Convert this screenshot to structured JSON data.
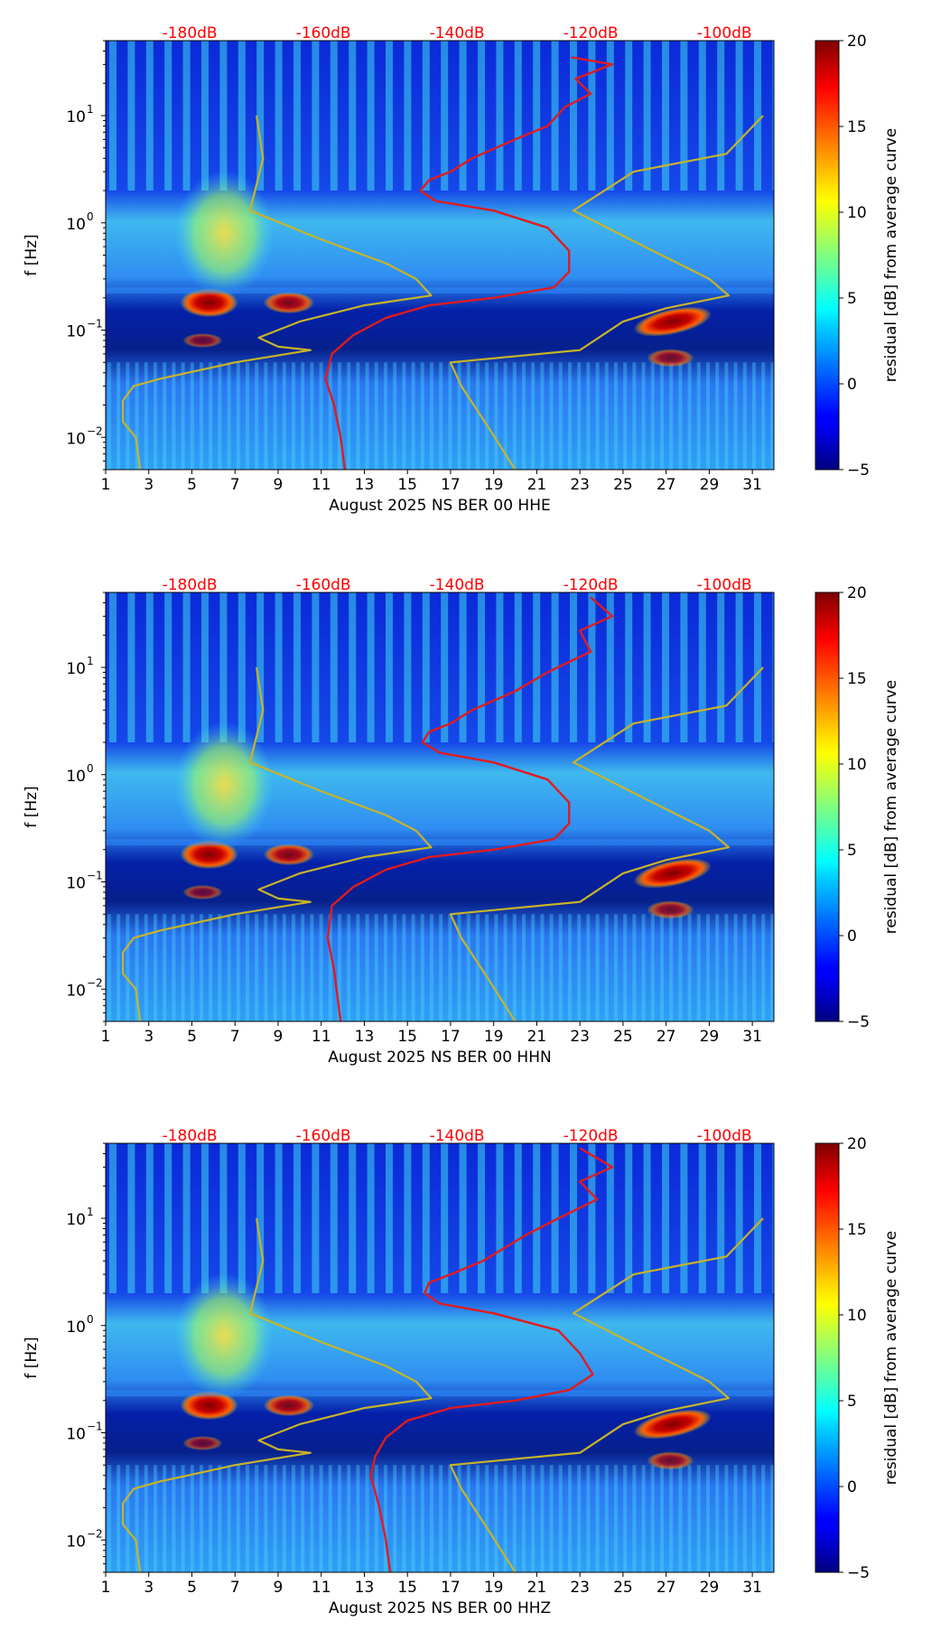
{
  "chart_data": [
    {
      "type": "heatmap",
      "xlabel": "August 2025 NS BER 00 HHE",
      "ylabel": "f [Hz]",
      "x_ticks": [
        "1",
        "3",
        "5",
        "7",
        "9",
        "11",
        "13",
        "15",
        "17",
        "19",
        "21",
        "23",
        "25",
        "27",
        "29",
        "31"
      ],
      "x_tick_values": [
        1,
        3,
        5,
        7,
        9,
        11,
        13,
        15,
        17,
        19,
        21,
        23,
        25,
        27,
        29,
        31
      ],
      "xlim": [
        1,
        32
      ],
      "y_scale": "log",
      "ylim": [
        0.005,
        50
      ],
      "y_ticks": [
        {
          "base": "10",
          "exp": "−2",
          "value": 0.01
        },
        {
          "base": "10",
          "exp": "−1",
          "value": 0.1
        },
        {
          "base": "10",
          "exp": "0",
          "value": 1
        },
        {
          "base": "10",
          "exp": "1",
          "value": 10
        }
      ],
      "top_labels": [
        "-180dB",
        "-160dB",
        "-140dB",
        "-120dB",
        "-100dB"
      ],
      "top_label_x": [
        4.9,
        11.1,
        17.3,
        23.5,
        29.7
      ],
      "colorbar": {
        "label": "residual [dB] from average curve",
        "ticks": [
          "20",
          "15",
          "10",
          "5",
          "0",
          "−5"
        ],
        "tick_values": [
          20,
          15,
          10,
          5,
          0,
          -5
        ],
        "range": [
          -5,
          20
        ]
      },
      "series": [
        {
          "color": "#e41a1c",
          "points": [
            [
              22.6,
              35
            ],
            [
              24.5,
              30
            ],
            [
              22.8,
              22
            ],
            [
              23.5,
              16
            ],
            [
              22.3,
              12
            ],
            [
              21.5,
              8
            ],
            [
              20,
              6
            ],
            [
              18,
              4
            ],
            [
              17,
              3
            ],
            [
              16,
              2.5
            ],
            [
              15.6,
              2
            ],
            [
              16.3,
              1.6
            ],
            [
              19,
              1.3
            ],
            [
              21.5,
              0.9
            ],
            [
              22.5,
              0.55
            ],
            [
              22.5,
              0.35
            ],
            [
              21.8,
              0.25
            ],
            [
              19,
              0.2
            ],
            [
              16,
              0.17
            ],
            [
              14,
              0.13
            ],
            [
              12.5,
              0.09
            ],
            [
              11.5,
              0.06
            ],
            [
              11.2,
              0.035
            ],
            [
              11.6,
              0.02
            ],
            [
              11.9,
              0.01
            ],
            [
              12.1,
              0.005
            ]
          ]
        },
        {
          "color": "#c8b428",
          "points": [
            [
              8,
              10
            ],
            [
              8.3,
              4
            ],
            [
              7.7,
              1.3
            ],
            [
              11,
              0.7
            ],
            [
              14,
              0.42
            ],
            [
              15.4,
              0.3
            ],
            [
              16.1,
              0.21
            ],
            [
              13,
              0.17
            ],
            [
              10,
              0.12
            ],
            [
              8.1,
              0.085
            ],
            [
              9,
              0.07
            ],
            [
              10.5,
              0.065
            ],
            [
              7,
              0.05
            ],
            [
              3.5,
              0.035
            ],
            [
              2.3,
              0.03
            ],
            [
              1.8,
              0.022
            ],
            [
              1.8,
              0.014
            ],
            [
              2.4,
              0.01
            ],
            [
              2.6,
              0.005
            ]
          ]
        },
        {
          "color": "#c8b428",
          "points": [
            [
              31.5,
              10
            ],
            [
              29.8,
              4.4
            ],
            [
              25.5,
              3
            ],
            [
              22.7,
              1.3
            ],
            [
              26,
              0.6
            ],
            [
              29,
              0.3
            ],
            [
              29.9,
              0.21
            ],
            [
              27,
              0.16
            ],
            [
              25,
              0.12
            ],
            [
              23,
              0.065
            ],
            [
              17,
              0.05
            ],
            [
              17.5,
              0.03
            ],
            [
              18.8,
              0.012
            ],
            [
              20,
              0.005
            ]
          ]
        }
      ]
    },
    {
      "type": "heatmap",
      "xlabel": "August 2025 NS BER 00 HHN",
      "ylabel": "f [Hz]",
      "x_ticks": [
        "1",
        "3",
        "5",
        "7",
        "9",
        "11",
        "13",
        "15",
        "17",
        "19",
        "21",
        "23",
        "25",
        "27",
        "29",
        "31"
      ],
      "x_tick_values": [
        1,
        3,
        5,
        7,
        9,
        11,
        13,
        15,
        17,
        19,
        21,
        23,
        25,
        27,
        29,
        31
      ],
      "xlim": [
        1,
        32
      ],
      "y_scale": "log",
      "ylim": [
        0.005,
        50
      ],
      "y_ticks": [
        {
          "base": "10",
          "exp": "−2",
          "value": 0.01
        },
        {
          "base": "10",
          "exp": "−1",
          "value": 0.1
        },
        {
          "base": "10",
          "exp": "0",
          "value": 1
        },
        {
          "base": "10",
          "exp": "1",
          "value": 10
        }
      ],
      "top_labels": [
        "-180dB",
        "-160dB",
        "-140dB",
        "-120dB",
        "-100dB"
      ],
      "top_label_x": [
        4.9,
        11.1,
        17.3,
        23.5,
        29.7
      ],
      "colorbar": {
        "label": "residual [dB] from average curve",
        "ticks": [
          "20",
          "15",
          "10",
          "5",
          "0",
          "−5"
        ],
        "tick_values": [
          20,
          15,
          10,
          5,
          0,
          -5
        ],
        "range": [
          -5,
          20
        ]
      },
      "series": [
        {
          "color": "#e41a1c",
          "points": [
            [
              23.5,
              45
            ],
            [
              24.5,
              30
            ],
            [
              23,
              22
            ],
            [
              23.5,
              14
            ],
            [
              21.5,
              9
            ],
            [
              20,
              6
            ],
            [
              18,
              4
            ],
            [
              17,
              3
            ],
            [
              16,
              2.5
            ],
            [
              15.7,
              2
            ],
            [
              16.5,
              1.6
            ],
            [
              19,
              1.3
            ],
            [
              21.5,
              0.9
            ],
            [
              22.5,
              0.55
            ],
            [
              22.5,
              0.35
            ],
            [
              21.8,
              0.25
            ],
            [
              19,
              0.2
            ],
            [
              16,
              0.17
            ],
            [
              14,
              0.13
            ],
            [
              12.5,
              0.09
            ],
            [
              11.5,
              0.06
            ],
            [
              11.3,
              0.03
            ],
            [
              11.6,
              0.015
            ],
            [
              11.9,
              0.005
            ]
          ]
        },
        {
          "color": "#c8b428",
          "points": [
            [
              8,
              10
            ],
            [
              8.3,
              4
            ],
            [
              7.7,
              1.3
            ],
            [
              11,
              0.7
            ],
            [
              14,
              0.42
            ],
            [
              15.4,
              0.3
            ],
            [
              16.1,
              0.21
            ],
            [
              13,
              0.17
            ],
            [
              10,
              0.12
            ],
            [
              8.1,
              0.085
            ],
            [
              9,
              0.07
            ],
            [
              10.5,
              0.065
            ],
            [
              7,
              0.05
            ],
            [
              3.5,
              0.035
            ],
            [
              2.3,
              0.03
            ],
            [
              1.8,
              0.022
            ],
            [
              1.8,
              0.014
            ],
            [
              2.4,
              0.01
            ],
            [
              2.6,
              0.005
            ]
          ]
        },
        {
          "color": "#c8b428",
          "points": [
            [
              31.5,
              10
            ],
            [
              29.8,
              4.4
            ],
            [
              25.5,
              3
            ],
            [
              22.7,
              1.3
            ],
            [
              26,
              0.6
            ],
            [
              29,
              0.3
            ],
            [
              29.9,
              0.21
            ],
            [
              27,
              0.16
            ],
            [
              25,
              0.12
            ],
            [
              23,
              0.065
            ],
            [
              17,
              0.05
            ],
            [
              17.5,
              0.03
            ],
            [
              18.8,
              0.012
            ],
            [
              20,
              0.005
            ]
          ]
        }
      ]
    },
    {
      "type": "heatmap",
      "xlabel": "August 2025 NS BER 00 HHZ",
      "ylabel": "f [Hz]",
      "x_ticks": [
        "1",
        "3",
        "5",
        "7",
        "9",
        "11",
        "13",
        "15",
        "17",
        "19",
        "21",
        "23",
        "25",
        "27",
        "29",
        "31"
      ],
      "x_tick_values": [
        1,
        3,
        5,
        7,
        9,
        11,
        13,
        15,
        17,
        19,
        21,
        23,
        25,
        27,
        29,
        31
      ],
      "xlim": [
        1,
        32
      ],
      "y_scale": "log",
      "ylim": [
        0.005,
        50
      ],
      "y_ticks": [
        {
          "base": "10",
          "exp": "−2",
          "value": 0.01
        },
        {
          "base": "10",
          "exp": "−1",
          "value": 0.1
        },
        {
          "base": "10",
          "exp": "0",
          "value": 1
        },
        {
          "base": "10",
          "exp": "1",
          "value": 10
        }
      ],
      "top_labels": [
        "-180dB",
        "-160dB",
        "-140dB",
        "-120dB",
        "-100dB"
      ],
      "top_label_x": [
        4.9,
        11.1,
        17.3,
        23.5,
        29.7
      ],
      "colorbar": {
        "label": "residual [dB] from average curve",
        "ticks": [
          "20",
          "15",
          "10",
          "5",
          "0",
          "−5"
        ],
        "tick_values": [
          20,
          15,
          10,
          5,
          0,
          -5
        ],
        "range": [
          -5,
          20
        ]
      },
      "series": [
        {
          "color": "#e41a1c",
          "points": [
            [
              23,
              45
            ],
            [
              24.5,
              30
            ],
            [
              23,
              22
            ],
            [
              23.8,
              15
            ],
            [
              22,
              10
            ],
            [
              20.5,
              7
            ],
            [
              18.5,
              4
            ],
            [
              17,
              3
            ],
            [
              16,
              2.5
            ],
            [
              15.8,
              2
            ],
            [
              16.5,
              1.6
            ],
            [
              19,
              1.3
            ],
            [
              22,
              0.9
            ],
            [
              23,
              0.55
            ],
            [
              23.6,
              0.35
            ],
            [
              22.5,
              0.25
            ],
            [
              20,
              0.2
            ],
            [
              17,
              0.17
            ],
            [
              15,
              0.13
            ],
            [
              14,
              0.09
            ],
            [
              13.5,
              0.06
            ],
            [
              13.3,
              0.04
            ],
            [
              13.7,
              0.02
            ],
            [
              14,
              0.01
            ],
            [
              14.2,
              0.005
            ]
          ]
        },
        {
          "color": "#c8b428",
          "points": [
            [
              8,
              10
            ],
            [
              8.3,
              4
            ],
            [
              7.7,
              1.3
            ],
            [
              11,
              0.7
            ],
            [
              14,
              0.42
            ],
            [
              15.4,
              0.3
            ],
            [
              16.1,
              0.21
            ],
            [
              13,
              0.17
            ],
            [
              10,
              0.12
            ],
            [
              8.1,
              0.085
            ],
            [
              9,
              0.07
            ],
            [
              10.5,
              0.065
            ],
            [
              7,
              0.05
            ],
            [
              3.5,
              0.035
            ],
            [
              2.3,
              0.03
            ],
            [
              1.8,
              0.022
            ],
            [
              1.8,
              0.014
            ],
            [
              2.4,
              0.01
            ],
            [
              2.6,
              0.005
            ]
          ]
        },
        {
          "color": "#c8b428",
          "points": [
            [
              31.5,
              10
            ],
            [
              29.8,
              4.4
            ],
            [
              25.5,
              3
            ],
            [
              22.7,
              1.3
            ],
            [
              26,
              0.6
            ],
            [
              29,
              0.3
            ],
            [
              29.9,
              0.21
            ],
            [
              27,
              0.16
            ],
            [
              25,
              0.12
            ],
            [
              23,
              0.065
            ],
            [
              17,
              0.05
            ],
            [
              17.5,
              0.03
            ],
            [
              18.8,
              0.012
            ],
            [
              20,
              0.005
            ]
          ]
        }
      ]
    }
  ]
}
